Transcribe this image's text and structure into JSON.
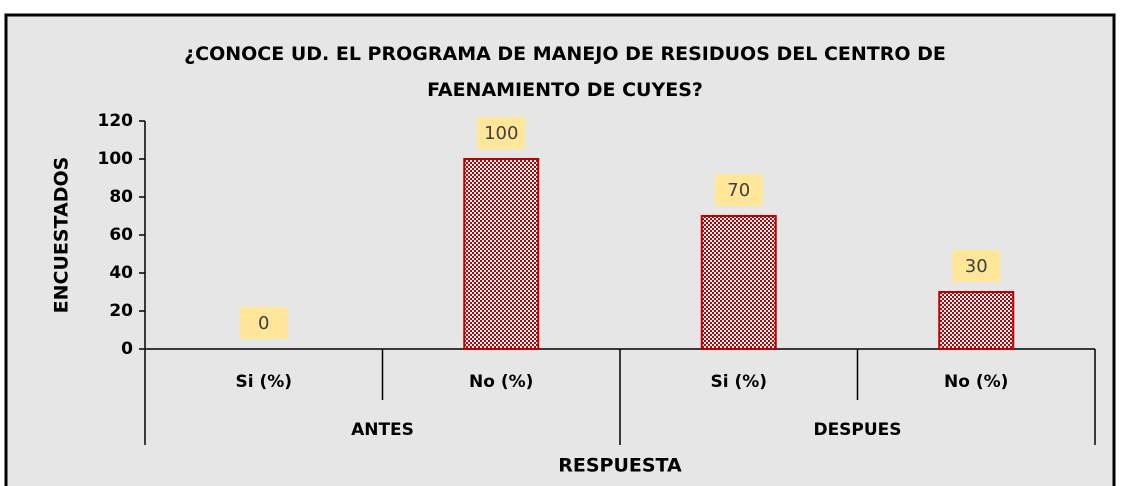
{
  "chart_data": {
    "type": "bar",
    "title": "¿CONOCE UD. EL PROGRAMA DE MANEJO DE RESIDUOS DEL CENTRO DE FAENAMIENTO DE CUYES?",
    "x_label": "RESPUESTA",
    "y_label": "ENCUESTADOS",
    "groups": [
      "ANTES",
      "DESPUES"
    ],
    "categories": [
      "Si (%)",
      "No (%)",
      "Si (%)",
      "No (%)"
    ],
    "values": [
      0,
      100,
      70,
      30
    ],
    "color": "#c00000",
    "ylim": [
      0,
      120
    ],
    "yticks": [
      0,
      20,
      40,
      60,
      80,
      100,
      120
    ]
  }
}
